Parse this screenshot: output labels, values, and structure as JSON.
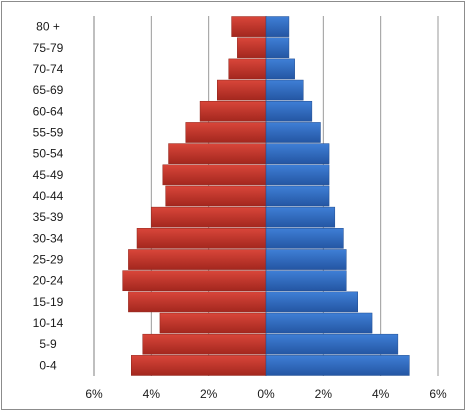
{
  "chart_data": {
    "type": "bar",
    "orientation": "horizontal",
    "layout": "population-pyramid",
    "categories": [
      "0-4",
      "5-9",
      "10-14",
      "15-19",
      "20-24",
      "25-29",
      "30-34",
      "35-39",
      "40-44",
      "45-49",
      "50-54",
      "55-59",
      "60-64",
      "65-69",
      "70-74",
      "75-79",
      "80 +"
    ],
    "series": [
      {
        "side": "left",
        "color": "#c0392b",
        "values": [
          4.7,
          4.3,
          3.7,
          4.8,
          5.0,
          4.8,
          4.5,
          4.0,
          3.5,
          3.6,
          3.4,
          2.8,
          2.3,
          1.7,
          1.3,
          1.0,
          1.2
        ]
      },
      {
        "side": "right",
        "color": "#2f6bc2",
        "values": [
          5.0,
          4.6,
          3.7,
          3.2,
          2.8,
          2.8,
          2.7,
          2.4,
          2.2,
          2.2,
          2.2,
          1.9,
          1.6,
          1.3,
          1.0,
          0.8,
          0.8
        ]
      }
    ],
    "xlim": [
      -6,
      6
    ],
    "xticks": [
      "6%",
      "4%",
      "2%",
      "0%",
      "2%",
      "4%",
      "6%"
    ],
    "grid": "vertical",
    "legend": "none"
  }
}
